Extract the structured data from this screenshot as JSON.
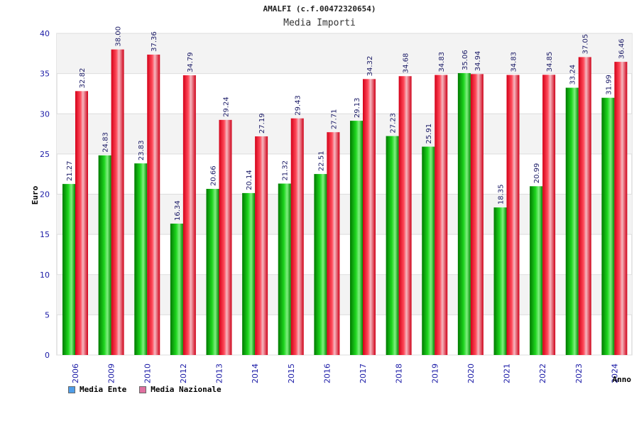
{
  "header": {
    "title": "AMALFI (c.f.00472320654)",
    "subtitle": "Media Importi"
  },
  "chart_data": {
    "type": "bar",
    "categories": [
      "2006",
      "2009",
      "2010",
      "2012",
      "2013",
      "2014",
      "2015",
      "2016",
      "2017",
      "2018",
      "2019",
      "2020",
      "2021",
      "2022",
      "2023",
      "2024"
    ],
    "series": [
      {
        "name": "Media Ente",
        "values": [
          21.27,
          24.83,
          23.83,
          16.34,
          20.66,
          20.14,
          21.32,
          22.51,
          29.13,
          27.23,
          25.91,
          35.06,
          18.35,
          20.99,
          33.24,
          31.99
        ],
        "labels": [
          "21.27",
          "24.83",
          "23.83",
          "16.34",
          "20.66",
          "20.14",
          "21.32",
          "22.51",
          "29.13",
          "27.23",
          "25.91",
          "35.06",
          "18.35",
          "20.99",
          "33.24",
          "31.99"
        ],
        "color": "#00b400",
        "legend_color": "#4f9de8"
      },
      {
        "name": "Media Nazionale",
        "values": [
          32.82,
          38.0,
          37.36,
          34.79,
          29.24,
          27.19,
          29.43,
          27.71,
          34.32,
          34.68,
          34.83,
          34.94,
          34.83,
          34.85,
          37.05,
          36.46
        ],
        "labels": [
          "32.82",
          "38.00",
          "37.36",
          "34.79",
          "29.24",
          "27.19",
          "29.43",
          "27.71",
          "34.32",
          "34.68",
          "34.83",
          "34.94",
          "34.83",
          "34.85",
          "37.05",
          "36.46"
        ],
        "color": "#e8001c",
        "legend_color": "#e070a0"
      }
    ],
    "xlabel": "Anno",
    "ylabel": "Euro",
    "ylim": [
      0,
      40
    ],
    "yticks": [
      "0",
      "5",
      "10",
      "15",
      "20",
      "25",
      "30",
      "35",
      "40"
    ],
    "grid": true,
    "legend": "bottom-left"
  }
}
